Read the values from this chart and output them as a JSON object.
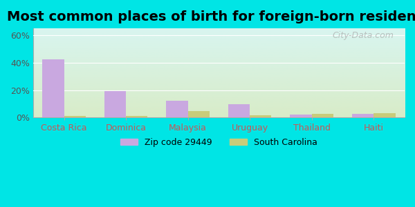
{
  "title": "Most common places of birth for foreign-born residents",
  "categories": [
    "Costa Rica",
    "Dominica",
    "Malaysia",
    "Uruguay",
    "Thailand",
    "Haiti"
  ],
  "zip_values": [
    42.5,
    19.0,
    12.0,
    9.5,
    2.0,
    2.5
  ],
  "sc_values": [
    1.0,
    1.0,
    4.5,
    1.5,
    2.5,
    3.0
  ],
  "zip_color": "#c9a8e0",
  "sc_color": "#c8cc7a",
  "background_outer": "#00e5e5",
  "background_inner_top": "#d8f5f0",
  "background_inner_bottom": "#d8ecc8",
  "ylabel_ticks": [
    "0%",
    "20%",
    "40%",
    "60%"
  ],
  "ytick_values": [
    0,
    20,
    40,
    60
  ],
  "ylim": [
    0,
    65
  ],
  "title_fontsize": 14,
  "tick_fontsize": 9,
  "legend_label_zip": "Zip code 29449",
  "legend_label_sc": "South Carolina",
  "bar_width": 0.35,
  "watermark": "City-Data.com"
}
